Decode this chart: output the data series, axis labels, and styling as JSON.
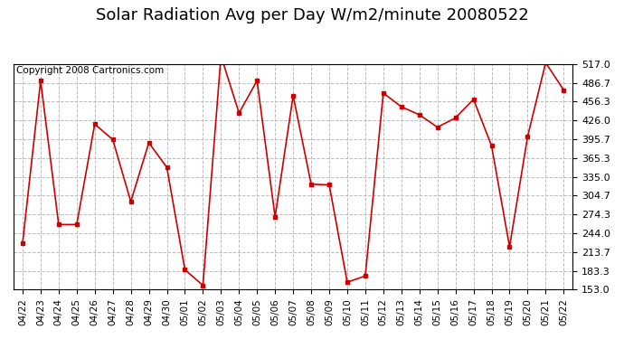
{
  "title": "Solar Radiation Avg per Day W/m2/minute 20080522",
  "copyright": "Copyright 2008 Cartronics.com",
  "dates": [
    "04/22",
    "04/23",
    "04/24",
    "04/25",
    "04/26",
    "04/27",
    "04/28",
    "04/29",
    "04/30",
    "05/01",
    "05/02",
    "05/03",
    "05/04",
    "05/05",
    "05/06",
    "05/07",
    "05/08",
    "05/09",
    "05/10",
    "05/11",
    "05/12",
    "05/13",
    "05/14",
    "05/15",
    "05/16",
    "05/17",
    "05/18",
    "05/19",
    "05/20",
    "05/21",
    "05/22"
  ],
  "values": [
    228,
    490,
    258,
    258,
    420,
    395,
    295,
    390,
    350,
    185,
    160,
    530,
    438,
    490,
    270,
    466,
    323,
    322,
    165,
    175,
    470,
    448,
    435,
    415,
    430,
    460,
    385,
    222,
    400,
    519,
    475
  ],
  "ymin": 153.0,
  "ymax": 517.0,
  "yticks": [
    153.0,
    183.3,
    213.7,
    244.0,
    274.3,
    304.7,
    335.0,
    365.3,
    395.7,
    426.0,
    456.3,
    486.7,
    517.0
  ],
  "line_color": "#cc0000",
  "marker_color": "#cc0000",
  "bg_color": "#ffffff",
  "plot_bg_color": "#ffffff",
  "grid_color": "#bbbbbb",
  "title_fontsize": 13,
  "copyright_fontsize": 7.5,
  "tick_labelsize": 8,
  "xtick_labelsize": 7.5
}
